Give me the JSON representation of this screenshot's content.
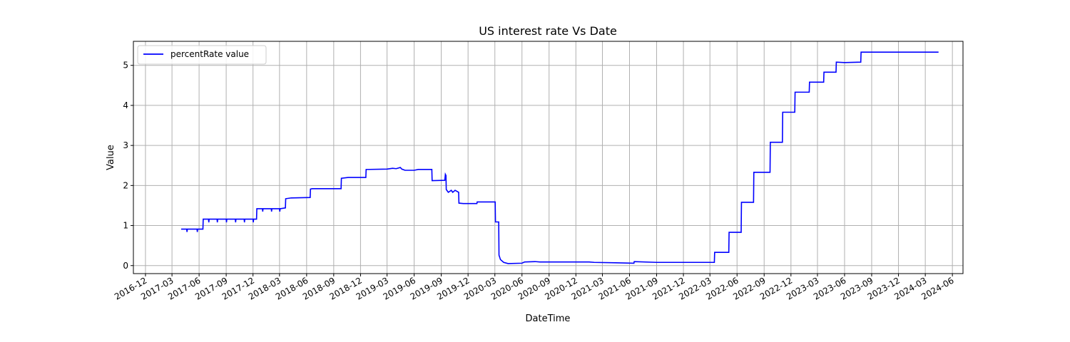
{
  "chart_data": {
    "type": "line",
    "title": "US interest rate Vs Date",
    "xlabel": "DateTime",
    "ylabel": "Value",
    "xlim": [
      "2016-10-21",
      "2024-07-07"
    ],
    "ylim": [
      -0.2,
      5.6
    ],
    "grid": true,
    "legend_position": "upper-left",
    "x_ticks": [
      "2016-12",
      "2017-03",
      "2017-06",
      "2017-09",
      "2017-12",
      "2018-03",
      "2018-06",
      "2018-09",
      "2018-12",
      "2019-03",
      "2019-06",
      "2019-09",
      "2019-12",
      "2020-03",
      "2020-06",
      "2020-09",
      "2020-12",
      "2021-03",
      "2021-06",
      "2021-09",
      "2021-12",
      "2022-03",
      "2022-06",
      "2022-09",
      "2022-12",
      "2023-03",
      "2023-06",
      "2023-09",
      "2023-12",
      "2024-03",
      "2024-06"
    ],
    "y_ticks": [
      0,
      1,
      2,
      3,
      4,
      5
    ],
    "series": [
      {
        "name": "percentRate value",
        "color": "#0000ff",
        "points": [
          [
            "2017-04-01",
            0.91
          ],
          [
            "2017-04-20",
            0.91
          ],
          [
            "2017-04-21",
            0.84
          ],
          [
            "2017-04-22",
            0.91
          ],
          [
            "2017-05-25",
            0.91
          ],
          [
            "2017-05-26",
            0.84
          ],
          [
            "2017-05-27",
            0.91
          ],
          [
            "2017-06-14",
            0.91
          ],
          [
            "2017-06-15",
            1.16
          ],
          [
            "2017-07-03",
            1.16
          ],
          [
            "2017-07-04",
            1.08
          ],
          [
            "2017-07-05",
            1.16
          ],
          [
            "2017-08-01",
            1.16
          ],
          [
            "2017-08-02",
            1.08
          ],
          [
            "2017-08-03",
            1.16
          ],
          [
            "2017-09-01",
            1.16
          ],
          [
            "2017-09-02",
            1.08
          ],
          [
            "2017-09-03",
            1.16
          ],
          [
            "2017-10-02",
            1.16
          ],
          [
            "2017-10-03",
            1.08
          ],
          [
            "2017-10-04",
            1.16
          ],
          [
            "2017-11-01",
            1.16
          ],
          [
            "2017-11-02",
            1.08
          ],
          [
            "2017-11-03",
            1.16
          ],
          [
            "2017-12-01",
            1.16
          ],
          [
            "2017-12-02",
            1.08
          ],
          [
            "2017-12-03",
            1.16
          ],
          [
            "2017-12-13",
            1.16
          ],
          [
            "2017-12-14",
            1.42
          ],
          [
            "2018-01-02",
            1.42
          ],
          [
            "2018-01-03",
            1.35
          ],
          [
            "2018-01-04",
            1.42
          ],
          [
            "2018-02-01",
            1.42
          ],
          [
            "2018-02-02",
            1.35
          ],
          [
            "2018-02-03",
            1.42
          ],
          [
            "2018-03-01",
            1.42
          ],
          [
            "2018-03-02",
            1.35
          ],
          [
            "2018-03-03",
            1.42
          ],
          [
            "2018-03-21",
            1.44
          ],
          [
            "2018-03-22",
            1.67
          ],
          [
            "2018-04-10",
            1.69
          ],
          [
            "2018-06-13",
            1.7
          ],
          [
            "2018-06-14",
            1.91
          ],
          [
            "2018-06-20",
            1.92
          ],
          [
            "2018-09-26",
            1.92
          ],
          [
            "2018-09-27",
            2.18
          ],
          [
            "2018-10-20",
            2.2
          ],
          [
            "2018-12-19",
            2.2
          ],
          [
            "2018-12-20",
            2.4
          ],
          [
            "2019-03-01",
            2.41
          ],
          [
            "2019-03-20",
            2.43
          ],
          [
            "2019-04-01",
            2.42
          ],
          [
            "2019-04-15",
            2.45
          ],
          [
            "2019-04-20",
            2.41
          ],
          [
            "2019-05-01",
            2.38
          ],
          [
            "2019-06-01",
            2.38
          ],
          [
            "2019-06-15",
            2.4
          ],
          [
            "2019-07-15",
            2.4
          ],
          [
            "2019-07-31",
            2.4
          ],
          [
            "2019-08-01",
            2.12
          ],
          [
            "2019-09-13",
            2.13
          ],
          [
            "2019-09-15",
            2.28
          ],
          [
            "2019-09-17",
            2.25
          ],
          [
            "2019-09-18",
            1.9
          ],
          [
            "2019-09-25",
            1.83
          ],
          [
            "2019-10-05",
            1.88
          ],
          [
            "2019-10-10",
            1.83
          ],
          [
            "2019-10-18",
            1.88
          ],
          [
            "2019-10-30",
            1.83
          ],
          [
            "2019-10-31",
            1.56
          ],
          [
            "2019-11-15",
            1.55
          ],
          [
            "2019-12-31",
            1.55
          ],
          [
            "2020-01-01",
            1.59
          ],
          [
            "2020-03-02",
            1.59
          ],
          [
            "2020-03-03",
            1.09
          ],
          [
            "2020-03-14",
            1.09
          ],
          [
            "2020-03-15",
            0.26
          ],
          [
            "2020-03-20",
            0.15
          ],
          [
            "2020-03-31",
            0.08
          ],
          [
            "2020-04-15",
            0.05
          ],
          [
            "2020-06-01",
            0.06
          ],
          [
            "2020-06-10",
            0.09
          ],
          [
            "2020-07-15",
            0.1
          ],
          [
            "2020-08-01",
            0.09
          ],
          [
            "2020-12-01",
            0.09
          ],
          [
            "2021-01-15",
            0.09
          ],
          [
            "2021-02-01",
            0.08
          ],
          [
            "2021-04-15",
            0.07
          ],
          [
            "2021-06-16",
            0.06
          ],
          [
            "2021-06-17",
            0.1
          ],
          [
            "2021-09-01",
            0.08
          ],
          [
            "2022-03-16",
            0.08
          ],
          [
            "2022-03-17",
            0.33
          ],
          [
            "2022-05-04",
            0.33
          ],
          [
            "2022-05-05",
            0.83
          ],
          [
            "2022-06-15",
            0.83
          ],
          [
            "2022-06-16",
            1.58
          ],
          [
            "2022-07-27",
            1.58
          ],
          [
            "2022-07-28",
            2.33
          ],
          [
            "2022-09-21",
            2.33
          ],
          [
            "2022-09-22",
            3.08
          ],
          [
            "2022-11-02",
            3.08
          ],
          [
            "2022-11-03",
            3.83
          ],
          [
            "2022-12-14",
            3.83
          ],
          [
            "2022-12-15",
            4.33
          ],
          [
            "2023-02-01",
            4.33
          ],
          [
            "2023-02-02",
            4.58
          ],
          [
            "2023-03-22",
            4.58
          ],
          [
            "2023-03-23",
            4.83
          ],
          [
            "2023-05-03",
            4.83
          ],
          [
            "2023-05-04",
            5.08
          ],
          [
            "2023-06-01",
            5.07
          ],
          [
            "2023-07-26",
            5.08
          ],
          [
            "2023-07-27",
            5.33
          ],
          [
            "2024-04-15",
            5.33
          ]
        ]
      }
    ]
  }
}
